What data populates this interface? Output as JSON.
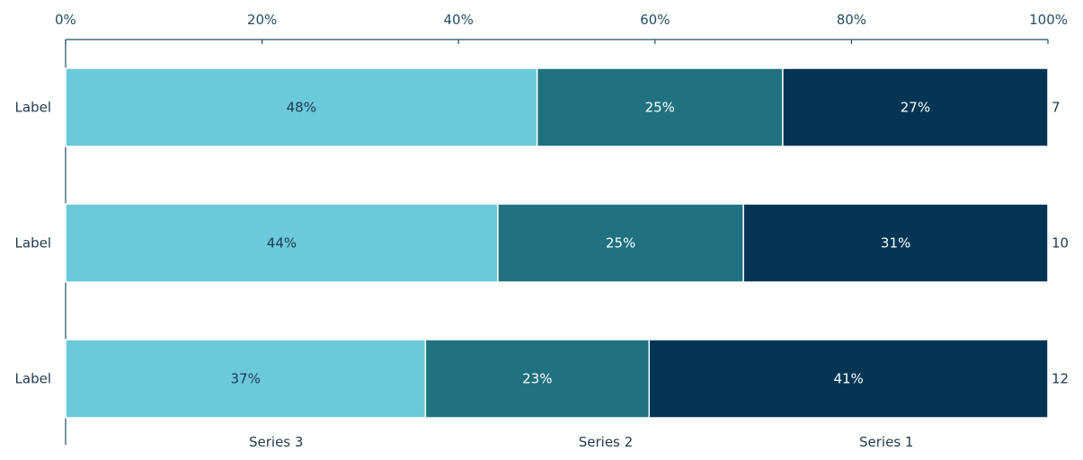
{
  "chart_data": {
    "type": "bar",
    "orientation": "horizontal",
    "stacked": "percent",
    "title": "",
    "xlabel": "",
    "ylabel": "",
    "xlim": [
      0,
      100
    ],
    "x_ticks": [
      "0%",
      "20%",
      "40%",
      "60%",
      "80%",
      "100%"
    ],
    "grid": false,
    "legend_position": "bottom",
    "categories": [
      "Label",
      "Label",
      "Label"
    ],
    "totals": [
      "7",
      "10",
      "12"
    ],
    "series": [
      {
        "name": "Series 3",
        "color": "#6ac9db",
        "text_color": "#1f3a4d",
        "values": [
          48,
          44,
          37
        ],
        "labels": [
          "48%",
          "44%",
          "37%"
        ]
      },
      {
        "name": "Series 2",
        "color": "#207280",
        "text_color": "#ffffff",
        "values": [
          25,
          25,
          23
        ],
        "labels": [
          "25%",
          "25%",
          "23%"
        ]
      },
      {
        "name": "Series 1",
        "color": "#023554",
        "text_color": "#ffffff",
        "values": [
          27,
          31,
          41
        ],
        "labels": [
          "27%",
          "31%",
          "41%"
        ]
      }
    ]
  }
}
